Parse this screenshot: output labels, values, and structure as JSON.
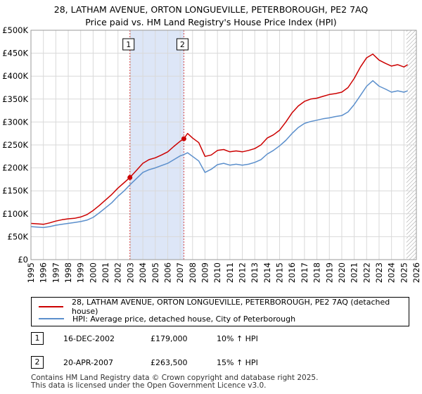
{
  "title_line1": "28, LATHAM AVENUE, ORTON LONGUEVILLE, PETERBOROUGH, PE2 7AQ",
  "title_line2": "Price paid vs. HM Land Registry's House Price Index (HPI)",
  "chart_data": {
    "type": "line",
    "xlim": [
      1995,
      2026
    ],
    "ylim": [
      0,
      500000
    ],
    "y_ticks": [
      0,
      50000,
      100000,
      150000,
      200000,
      250000,
      300000,
      350000,
      400000,
      450000,
      500000
    ],
    "y_tick_labels": [
      "£0",
      "£50K",
      "£100K",
      "£150K",
      "£200K",
      "£250K",
      "£300K",
      "£350K",
      "£400K",
      "£450K",
      "£500K"
    ],
    "x_ticks": [
      1995,
      1996,
      1997,
      1998,
      1999,
      2000,
      2001,
      2002,
      2003,
      2004,
      2005,
      2006,
      2007,
      2008,
      2009,
      2010,
      2011,
      2012,
      2013,
      2014,
      2015,
      2016,
      2017,
      2018,
      2019,
      2020,
      2021,
      2022,
      2023,
      2024,
      2025,
      2026
    ],
    "x_tick_labels": [
      "1995",
      "1996",
      "1997",
      "1998",
      "1999",
      "2000",
      "2001",
      "2002",
      "2003",
      "2004",
      "2005",
      "2006",
      "2007",
      "2008",
      "2009",
      "2010",
      "2011",
      "2012",
      "2013",
      "2014",
      "2015",
      "2016",
      "2017",
      "2018",
      "2019",
      "2020",
      "2021",
      "2022",
      "2023",
      "2024",
      "2025",
      "2026"
    ],
    "grid": true,
    "shaded_region": [
      2002.96,
      2007.3
    ],
    "hatched_region_start": 2025.2,
    "series": [
      {
        "name": "28, LATHAM AVENUE, ORTON LONGUEVILLE, PETERBOROUGH, PE2 7AQ (detached house)",
        "color": "#cc0000",
        "x": [
          1995,
          1995.5,
          1996,
          1996.5,
          1997,
          1997.5,
          1998,
          1998.5,
          1999,
          1999.5,
          2000,
          2000.5,
          2001,
          2001.5,
          2002,
          2002.5,
          2002.96,
          2003.5,
          2004,
          2004.5,
          2005,
          2005.5,
          2006,
          2006.5,
          2007,
          2007.3,
          2007.6,
          2008,
          2008.5,
          2009,
          2009.5,
          2010,
          2010.5,
          2011,
          2011.5,
          2012,
          2012.5,
          2013,
          2013.5,
          2014,
          2014.5,
          2015,
          2015.5,
          2016,
          2016.5,
          2017,
          2017.5,
          2018,
          2018.5,
          2019,
          2019.5,
          2020,
          2020.5,
          2021,
          2021.5,
          2022,
          2022.5,
          2023,
          2023.5,
          2024,
          2024.5,
          2025,
          2025.3
        ],
        "values": [
          79000,
          78000,
          77000,
          80000,
          84000,
          87000,
          89000,
          90000,
          93000,
          98000,
          107000,
          118000,
          130000,
          142000,
          156000,
          168000,
          179000,
          195000,
          210000,
          218000,
          222000,
          228000,
          235000,
          247000,
          258000,
          263500,
          275000,
          265000,
          255000,
          225000,
          228000,
          238000,
          240000,
          235000,
          237000,
          235000,
          238000,
          242000,
          250000,
          265000,
          272000,
          282000,
          300000,
          320000,
          335000,
          345000,
          350000,
          352000,
          356000,
          360000,
          362000,
          365000,
          375000,
          395000,
          420000,
          440000,
          448000,
          435000,
          428000,
          422000,
          425000,
          420000,
          425000
        ]
      },
      {
        "name": "HPI: Average price, detached house, City of Peterborough",
        "color": "#5b8fcc",
        "x": [
          1995,
          1995.5,
          1996,
          1996.5,
          1997,
          1997.5,
          1998,
          1998.5,
          1999,
          1999.5,
          2000,
          2000.5,
          2001,
          2001.5,
          2002,
          2002.5,
          2002.96,
          2003.5,
          2004,
          2004.5,
          2005,
          2005.5,
          2006,
          2006.5,
          2007,
          2007.3,
          2007.6,
          2008,
          2008.5,
          2009,
          2009.5,
          2010,
          2010.5,
          2011,
          2011.5,
          2012,
          2012.5,
          2013,
          2013.5,
          2014,
          2014.5,
          2015,
          2015.5,
          2016,
          2016.5,
          2017,
          2017.5,
          2018,
          2018.5,
          2019,
          2019.5,
          2020,
          2020.5,
          2021,
          2021.5,
          2022,
          2022.5,
          2023,
          2023.5,
          2024,
          2024.5,
          2025,
          2025.3
        ],
        "values": [
          72000,
          71000,
          70000,
          72000,
          75000,
          77000,
          79000,
          81000,
          83000,
          86000,
          92000,
          102000,
          113000,
          124000,
          138000,
          150000,
          163000,
          177000,
          190000,
          196000,
          200000,
          205000,
          210000,
          218000,
          226000,
          229000,
          233000,
          225000,
          215000,
          190000,
          197000,
          207000,
          210000,
          206000,
          208000,
          206000,
          208000,
          212000,
          218000,
          230000,
          238000,
          248000,
          260000,
          275000,
          288000,
          297000,
          301000,
          304000,
          307000,
          309000,
          312000,
          314000,
          322000,
          338000,
          358000,
          378000,
          390000,
          378000,
          372000,
          365000,
          368000,
          365000,
          368000
        ]
      }
    ],
    "annotations": [
      {
        "label": "1",
        "x": 2002.96,
        "y": 179000
      },
      {
        "label": "2",
        "x": 2007.3,
        "y": 263500
      }
    ]
  },
  "legend": {
    "items": [
      {
        "label": "28, LATHAM AVENUE, ORTON LONGUEVILLE, PETERBOROUGH, PE2 7AQ (detached house)",
        "color": "#cc0000"
      },
      {
        "label": "HPI: Average price, detached house, City of Peterborough",
        "color": "#5b8fcc"
      }
    ]
  },
  "sales": [
    {
      "num": "1",
      "date": "16-DEC-2002",
      "price": "£179,000",
      "hpi": "10% ↑ HPI"
    },
    {
      "num": "2",
      "date": "20-APR-2007",
      "price": "£263,500",
      "hpi": "15% ↑ HPI"
    }
  ],
  "footer": {
    "line1": "Contains HM Land Registry data © Crown copyright and database right 2025.",
    "line2": "This data is licensed under the Open Government Licence v3.0."
  }
}
